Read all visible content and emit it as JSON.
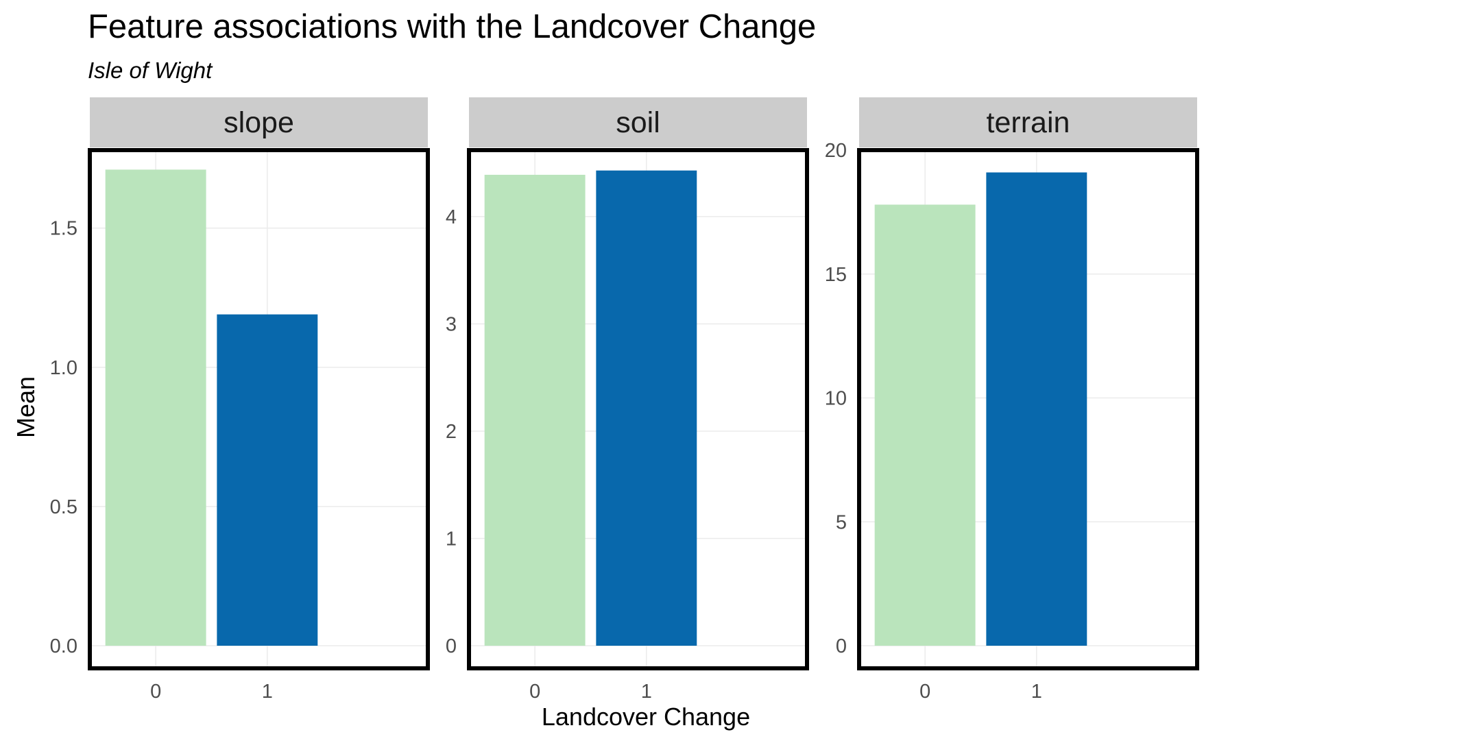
{
  "chart_data": {
    "type": "bar",
    "title": "Feature associations with the Landcover Change",
    "subtitle": "Isle of Wight",
    "xlabel": "Landcover Change",
    "ylabel": "Mean",
    "categories": [
      "0",
      "1"
    ],
    "colors": [
      "#bae4bc",
      "#0868ac"
    ],
    "grid": true,
    "facets": [
      {
        "name": "slope",
        "values": [
          1.71,
          1.19
        ],
        "ylim": [
          0,
          1.78
        ],
        "yticks": [
          0.0,
          0.5,
          1.0,
          1.5
        ],
        "ytick_labels": [
          "0.0",
          "0.5",
          "1.0",
          "1.5"
        ],
        "highlighted": true
      },
      {
        "name": "soil",
        "values": [
          4.39,
          4.43
        ],
        "ylim": [
          0,
          4.62
        ],
        "yticks": [
          0,
          1,
          2,
          3,
          4
        ],
        "ytick_labels": [
          "0",
          "1",
          "2",
          "3",
          "4"
        ],
        "highlighted": true
      },
      {
        "name": "terrain",
        "values": [
          17.8,
          19.1
        ],
        "ylim": [
          0,
          20
        ],
        "yticks": [
          0,
          5,
          10,
          15,
          20
        ],
        "ytick_labels": [
          "0",
          "5",
          "10",
          "15",
          "20"
        ],
        "highlighted": true
      }
    ]
  }
}
